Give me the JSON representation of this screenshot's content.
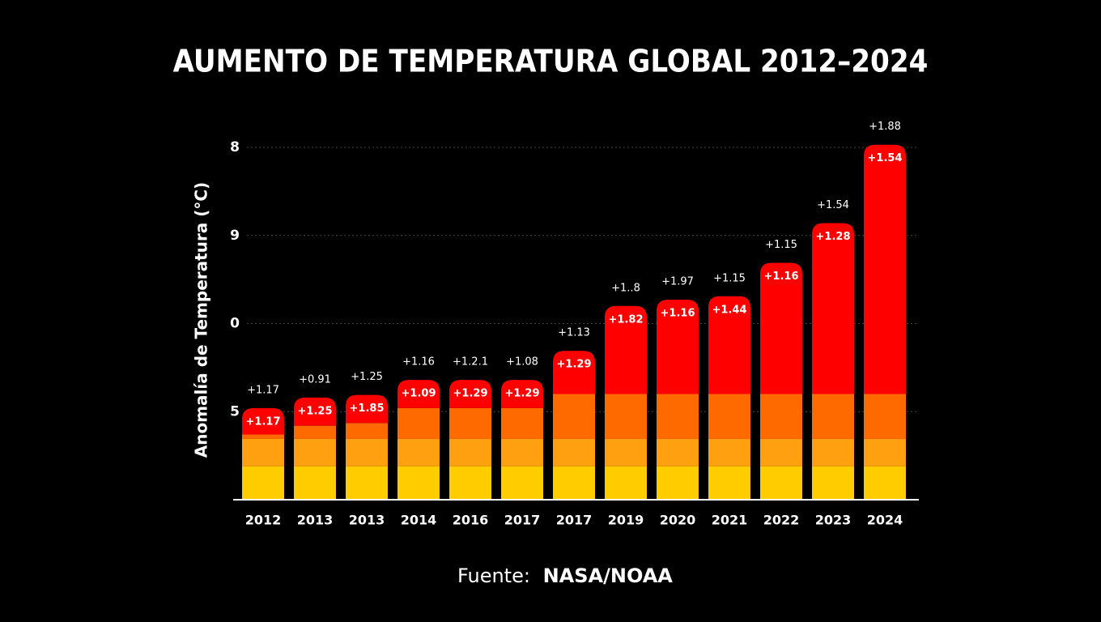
{
  "chart_data": {
    "type": "stacked_bar",
    "title": "AUMENTO DE TEMPERATURA GLOBAL 2012–2024",
    "y_label": "Anomalía de Temperatura (°C)",
    "source_prefix": "Fuente:",
    "source_name": "NASA/NOAA",
    "categories": [
      "2012",
      "2013",
      "2013",
      "2014",
      "2016",
      "2017",
      "2017",
      "2019",
      "2020",
      "2021",
      "2022",
      "2023",
      "2024"
    ],
    "series": [
      {
        "color": "#ffcc00",
        "values": [
          0.38,
          0.38,
          0.38,
          0.38,
          0.38,
          0.38,
          0.38,
          0.38,
          0.38,
          0.38,
          0.38,
          0.38,
          0.38
        ]
      },
      {
        "color": "#ffa010",
        "values": [
          0.31,
          0.31,
          0.31,
          0.31,
          0.31,
          0.31,
          0.31,
          0.31,
          0.31,
          0.31,
          0.31,
          0.31,
          0.31
        ]
      },
      {
        "color": "#ff6a00",
        "values": [
          0.05,
          0.15,
          0.18,
          0.35,
          0.35,
          0.35,
          0.51,
          0.51,
          0.51,
          0.51,
          0.51,
          0.51,
          0.51
        ]
      },
      {
        "color": "#ff0000",
        "values": [
          0.3,
          0.32,
          0.32,
          0.32,
          0.32,
          0.32,
          0.49,
          1.0,
          1.07,
          1.11,
          1.49,
          1.94,
          2.83
        ]
      }
    ],
    "top_labels": [
      "+1.17",
      "+0.91",
      "+1.25",
      "+1.16",
      "+1.2.1",
      "+1.08",
      "+1.13",
      "+1..8",
      "+1.97",
      "+1.15",
      "+1.15",
      "+1.54",
      "+1.88"
    ],
    "inner_labels": [
      "+1.17",
      "+1.25",
      "+1.85",
      "+1.09",
      "+1.29",
      "+1.29",
      "+1.29",
      "+1.82",
      "+1.16",
      "+1.44",
      "+1.16",
      "+1.28",
      "+1.54"
    ],
    "ylim": [
      0,
      4
    ],
    "yticks": [
      {
        "value": 1,
        "label": "5"
      },
      {
        "value": 2,
        "label": "0"
      },
      {
        "value": 3,
        "label": "9"
      },
      {
        "value": 4,
        "label": "8"
      }
    ],
    "grid": true
  }
}
